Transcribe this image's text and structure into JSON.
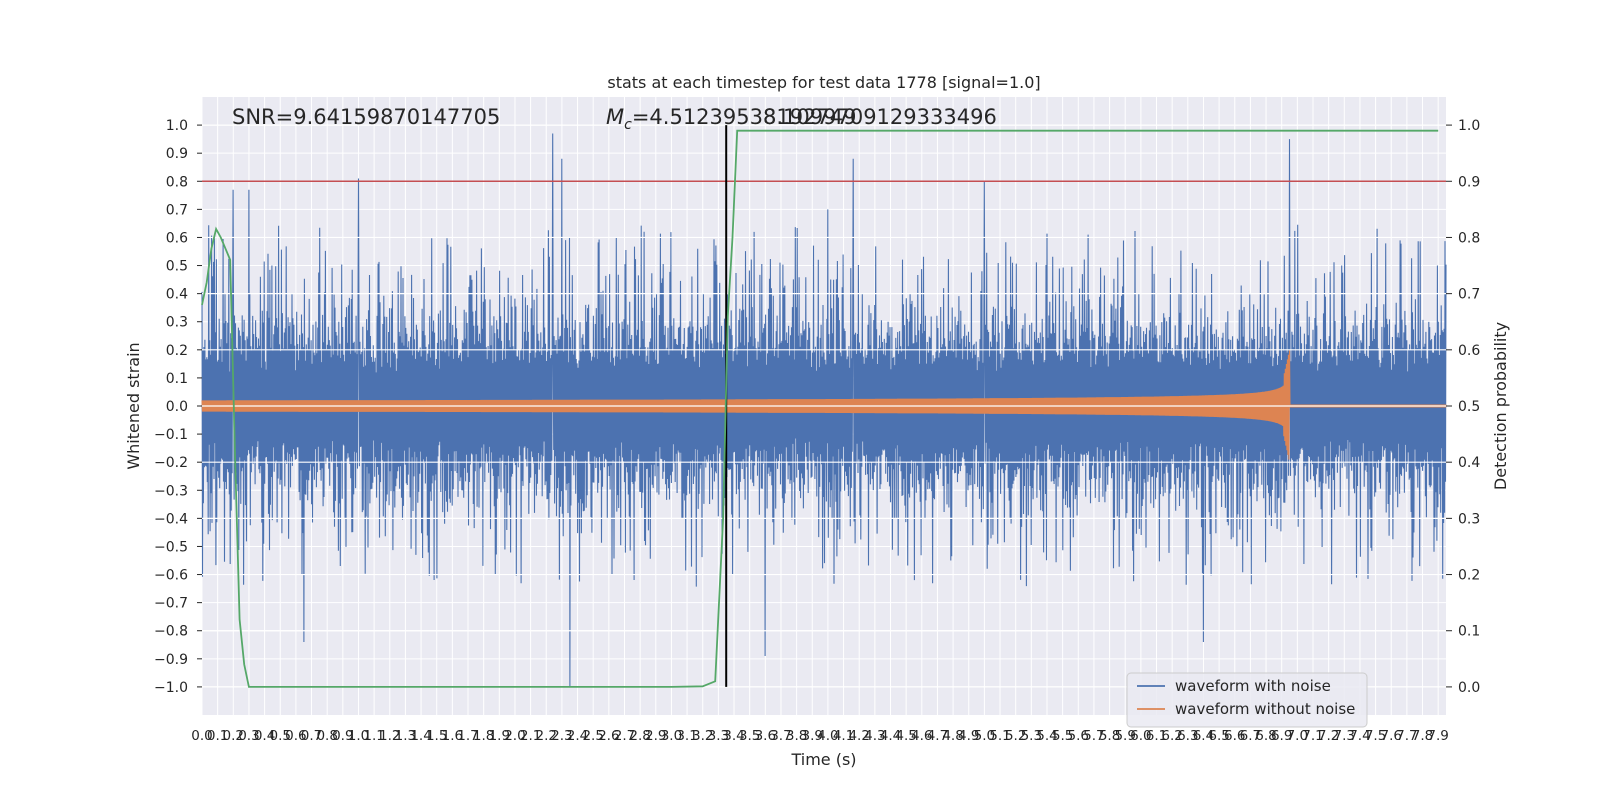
{
  "chart_data": {
    "type": "line",
    "title": "stats at each timestep for test data 1778 [signal=1.0]",
    "xlabel": "Time (s)",
    "ylabel": "Whitened strain",
    "ylabel_right": "Detection probability",
    "xlim": [
      0.0,
      7.95
    ],
    "ylim": [
      -1.1,
      1.1
    ],
    "ylim_right": [
      -0.05,
      1.05
    ],
    "x_ticks": [
      0.0,
      0.1,
      0.2,
      0.3,
      0.4,
      0.5,
      0.6,
      0.7,
      0.8,
      0.9,
      1.0,
      1.1,
      1.2,
      1.3,
      1.4,
      1.5,
      1.6,
      1.7,
      1.8,
      1.9,
      2.0,
      2.1,
      2.2,
      2.3,
      2.4,
      2.5,
      2.6,
      2.7,
      2.8,
      2.9,
      3.0,
      3.1,
      3.2,
      3.3,
      3.4,
      3.5,
      3.6,
      3.7,
      3.8,
      3.9,
      4.0,
      4.1,
      4.2,
      4.3,
      4.4,
      4.5,
      4.6,
      4.7,
      4.8,
      4.9,
      5.0,
      5.1,
      5.2,
      5.3,
      5.4,
      5.5,
      5.6,
      5.7,
      5.8,
      5.9,
      6.0,
      6.1,
      6.2,
      6.3,
      6.4,
      6.5,
      6.6,
      6.7,
      6.8,
      6.9,
      7.0,
      7.1,
      7.2,
      7.3,
      7.4,
      7.5,
      7.6,
      7.7,
      7.8,
      7.9
    ],
    "x_tick_labels": [
      "0.0",
      "0.1",
      "0.2",
      "0.3",
      "0.4",
      "0.5",
      "0.6",
      "0.7",
      "0.8",
      "0.9",
      "1.0",
      "1.1",
      "1.2",
      "1.3",
      "1.4",
      "1.5",
      "1.6",
      "1.7",
      "1.8",
      "1.9",
      "2.0",
      "2.1",
      "2.2",
      "2.3",
      "2.4",
      "2.5",
      "2.6",
      "2.7",
      "2.8",
      "2.9",
      "3.0",
      "3.1",
      "3.2",
      "3.3",
      "3.4",
      "3.5",
      "3.6",
      "3.7",
      "3.8",
      "3.9",
      "4.0",
      "4.1",
      "4.2",
      "4.3",
      "4.4",
      "4.5",
      "4.6",
      "4.7",
      "4.8",
      "4.9",
      "5.0",
      "5.1",
      "5.2",
      "5.3",
      "5.4",
      "5.5",
      "5.6",
      "5.7",
      "5.8",
      "5.9",
      "6.0",
      "6.1",
      "6.2",
      "6.3",
      "6.4",
      "6.5",
      "6.6",
      "6.7",
      "6.8",
      "6.9",
      "7.0",
      "7.1",
      "7.2",
      "7.3",
      "7.4",
      "7.5",
      "7.6",
      "7.7",
      "7.8",
      "7.9"
    ],
    "y_ticks": [
      -1.0,
      -0.9,
      -0.8,
      -0.7,
      -0.6,
      -0.5,
      -0.4,
      -0.3,
      -0.2,
      -0.1,
      0.0,
      0.1,
      0.2,
      0.3,
      0.4,
      0.5,
      0.6,
      0.7,
      0.8,
      0.9,
      1.0
    ],
    "y_tick_labels": [
      "−1.0",
      "−0.9",
      "−0.8",
      "−0.7",
      "−0.6",
      "−0.5",
      "−0.4",
      "−0.3",
      "−0.2",
      "−0.1",
      "0.0",
      "0.1",
      "0.2",
      "0.3",
      "0.4",
      "0.5",
      "0.6",
      "0.7",
      "0.8",
      "0.9",
      "1.0"
    ],
    "y_right_ticks": [
      0.0,
      0.1,
      0.2,
      0.3,
      0.4,
      0.5,
      0.6,
      0.7,
      0.8,
      0.9,
      1.0
    ],
    "y_right_tick_labels": [
      "0.0",
      "0.1",
      "0.2",
      "0.3",
      "0.4",
      "0.5",
      "0.6",
      "0.7",
      "0.8",
      "0.9",
      "1.0"
    ],
    "annotations": {
      "snr": "SNR=9.64159870147705",
      "mc_symbol": "M",
      "mc_sub": "c",
      "mc_value": "=4.51239538192749",
      "mc_overlap": "8.1099709129333496"
    },
    "threshold_line": {
      "y_right": 0.9,
      "color": "#c44e52"
    },
    "marker_line": {
      "x": 3.35,
      "color": "#000000"
    },
    "series": [
      {
        "name": "waveform with noise",
        "color": "#4c72b0",
        "description": "whitened strain with noise, dense oscillation",
        "typical_amplitude": 0.35,
        "peaks": [
          [
            0.2,
            0.77
          ],
          [
            0.3,
            0.77
          ],
          [
            1.0,
            0.81
          ],
          [
            2.24,
            0.97
          ],
          [
            2.3,
            0.88
          ],
          [
            2.35,
            -1.0
          ],
          [
            4.16,
            0.88
          ],
          [
            4.0,
            0.7
          ],
          [
            5.0,
            0.8
          ],
          [
            6.95,
            0.95
          ],
          [
            6.4,
            -0.84
          ],
          [
            0.65,
            -0.84
          ],
          [
            3.6,
            -0.89
          ]
        ]
      },
      {
        "name": "waveform without noise",
        "color": "#dd8452",
        "description": "chirp signal growing in amplitude until merger",
        "start_amplitude": 0.02,
        "merger_time": 6.95,
        "merger_amplitude": 0.2,
        "post_merger_amplitude": 0.005
      },
      {
        "name": "detection probability",
        "color": "#55a868",
        "x": [
          0.0,
          0.03,
          0.06,
          0.09,
          0.12,
          0.15,
          0.18,
          0.21,
          0.24,
          0.27,
          0.3,
          0.5,
          1.0,
          1.5,
          2.0,
          2.5,
          3.0,
          3.2,
          3.28,
          3.33,
          3.36,
          3.39,
          3.42,
          3.5,
          4.0,
          5.0,
          6.0,
          7.0,
          7.9
        ],
        "values": [
          0.68,
          0.72,
          0.78,
          0.815,
          0.8,
          0.78,
          0.76,
          0.42,
          0.12,
          0.04,
          0.0,
          0.0,
          0.0,
          0.0,
          0.0,
          0.0,
          0.0,
          0.001,
          0.01,
          0.3,
          0.66,
          0.8,
          0.99,
          0.99,
          0.99,
          0.99,
          0.99,
          0.99,
          0.99
        ]
      }
    ],
    "legend": {
      "placement": "lower-right",
      "entries": [
        {
          "label": "waveform with noise",
          "color": "#4c72b0"
        },
        {
          "label": "waveform without noise",
          "color": "#dd8452"
        }
      ]
    },
    "grid": true
  }
}
